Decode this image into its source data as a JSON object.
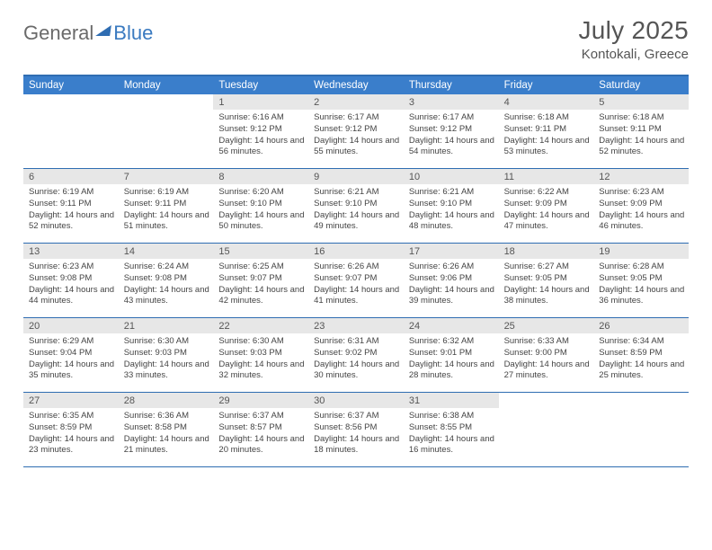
{
  "logo": {
    "part1": "General",
    "part2": "Blue"
  },
  "title": {
    "month_year": "July 2025",
    "location": "Kontokali, Greece"
  },
  "headers": [
    "Sunday",
    "Monday",
    "Tuesday",
    "Wednesday",
    "Thursday",
    "Friday",
    "Saturday"
  ],
  "colors": {
    "header_bg": "#3a7ecb",
    "border": "#2f6db2",
    "daynum_bg": "#e7e7e7",
    "text": "#555"
  },
  "layout": {
    "first_weekday_index": 2,
    "days_in_month": 31
  },
  "days": [
    {
      "n": 1,
      "sunrise": "6:16 AM",
      "sunset": "9:12 PM",
      "daylight": "14 hours and 56 minutes."
    },
    {
      "n": 2,
      "sunrise": "6:17 AM",
      "sunset": "9:12 PM",
      "daylight": "14 hours and 55 minutes."
    },
    {
      "n": 3,
      "sunrise": "6:17 AM",
      "sunset": "9:12 PM",
      "daylight": "14 hours and 54 minutes."
    },
    {
      "n": 4,
      "sunrise": "6:18 AM",
      "sunset": "9:11 PM",
      "daylight": "14 hours and 53 minutes."
    },
    {
      "n": 5,
      "sunrise": "6:18 AM",
      "sunset": "9:11 PM",
      "daylight": "14 hours and 52 minutes."
    },
    {
      "n": 6,
      "sunrise": "6:19 AM",
      "sunset": "9:11 PM",
      "daylight": "14 hours and 52 minutes."
    },
    {
      "n": 7,
      "sunrise": "6:19 AM",
      "sunset": "9:11 PM",
      "daylight": "14 hours and 51 minutes."
    },
    {
      "n": 8,
      "sunrise": "6:20 AM",
      "sunset": "9:10 PM",
      "daylight": "14 hours and 50 minutes."
    },
    {
      "n": 9,
      "sunrise": "6:21 AM",
      "sunset": "9:10 PM",
      "daylight": "14 hours and 49 minutes."
    },
    {
      "n": 10,
      "sunrise": "6:21 AM",
      "sunset": "9:10 PM",
      "daylight": "14 hours and 48 minutes."
    },
    {
      "n": 11,
      "sunrise": "6:22 AM",
      "sunset": "9:09 PM",
      "daylight": "14 hours and 47 minutes."
    },
    {
      "n": 12,
      "sunrise": "6:23 AM",
      "sunset": "9:09 PM",
      "daylight": "14 hours and 46 minutes."
    },
    {
      "n": 13,
      "sunrise": "6:23 AM",
      "sunset": "9:08 PM",
      "daylight": "14 hours and 44 minutes."
    },
    {
      "n": 14,
      "sunrise": "6:24 AM",
      "sunset": "9:08 PM",
      "daylight": "14 hours and 43 minutes."
    },
    {
      "n": 15,
      "sunrise": "6:25 AM",
      "sunset": "9:07 PM",
      "daylight": "14 hours and 42 minutes."
    },
    {
      "n": 16,
      "sunrise": "6:26 AM",
      "sunset": "9:07 PM",
      "daylight": "14 hours and 41 minutes."
    },
    {
      "n": 17,
      "sunrise": "6:26 AM",
      "sunset": "9:06 PM",
      "daylight": "14 hours and 39 minutes."
    },
    {
      "n": 18,
      "sunrise": "6:27 AM",
      "sunset": "9:05 PM",
      "daylight": "14 hours and 38 minutes."
    },
    {
      "n": 19,
      "sunrise": "6:28 AM",
      "sunset": "9:05 PM",
      "daylight": "14 hours and 36 minutes."
    },
    {
      "n": 20,
      "sunrise": "6:29 AM",
      "sunset": "9:04 PM",
      "daylight": "14 hours and 35 minutes."
    },
    {
      "n": 21,
      "sunrise": "6:30 AM",
      "sunset": "9:03 PM",
      "daylight": "14 hours and 33 minutes."
    },
    {
      "n": 22,
      "sunrise": "6:30 AM",
      "sunset": "9:03 PM",
      "daylight": "14 hours and 32 minutes."
    },
    {
      "n": 23,
      "sunrise": "6:31 AM",
      "sunset": "9:02 PM",
      "daylight": "14 hours and 30 minutes."
    },
    {
      "n": 24,
      "sunrise": "6:32 AM",
      "sunset": "9:01 PM",
      "daylight": "14 hours and 28 minutes."
    },
    {
      "n": 25,
      "sunrise": "6:33 AM",
      "sunset": "9:00 PM",
      "daylight": "14 hours and 27 minutes."
    },
    {
      "n": 26,
      "sunrise": "6:34 AM",
      "sunset": "8:59 PM",
      "daylight": "14 hours and 25 minutes."
    },
    {
      "n": 27,
      "sunrise": "6:35 AM",
      "sunset": "8:59 PM",
      "daylight": "14 hours and 23 minutes."
    },
    {
      "n": 28,
      "sunrise": "6:36 AM",
      "sunset": "8:58 PM",
      "daylight": "14 hours and 21 minutes."
    },
    {
      "n": 29,
      "sunrise": "6:37 AM",
      "sunset": "8:57 PM",
      "daylight": "14 hours and 20 minutes."
    },
    {
      "n": 30,
      "sunrise": "6:37 AM",
      "sunset": "8:56 PM",
      "daylight": "14 hours and 18 minutes."
    },
    {
      "n": 31,
      "sunrise": "6:38 AM",
      "sunset": "8:55 PM",
      "daylight": "14 hours and 16 minutes."
    }
  ],
  "labels": {
    "sunrise": "Sunrise:",
    "sunset": "Sunset:",
    "daylight": "Daylight:"
  }
}
